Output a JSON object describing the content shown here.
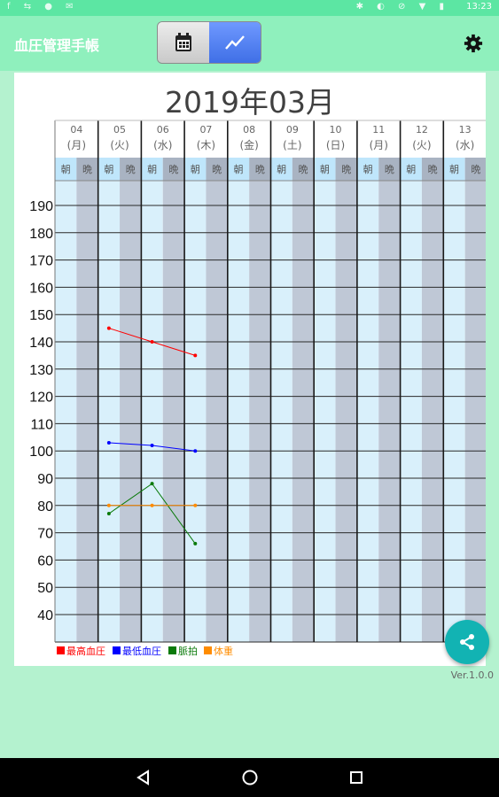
{
  "status": {
    "time": "13:23",
    "left_icons": "f ⇆ ● ✉",
    "right_icons": "✱ ◐ ⊘ ▼ ▮"
  },
  "app": {
    "title": "血圧管理手帳"
  },
  "toolbar": {
    "calendar_icon": "calendar-icon",
    "chart_icon": "line-chart-icon",
    "settings_icon": "gear-icon"
  },
  "month_title": "2019年03月",
  "version": "Ver.1.0.0",
  "colors": {
    "systolic": "#ff0000",
    "diastolic": "#0000ff",
    "pulse": "#0a7a0a",
    "weight": "#ff8c00"
  },
  "chart_data": {
    "type": "line",
    "title": "2019年03月",
    "days": [
      {
        "d": "04",
        "w": "(月)"
      },
      {
        "d": "05",
        "w": "(火)"
      },
      {
        "d": "06",
        "w": "(水)"
      },
      {
        "d": "07",
        "w": "(木)"
      },
      {
        "d": "08",
        "w": "(金)"
      },
      {
        "d": "09",
        "w": "(土)"
      },
      {
        "d": "10",
        "w": "(日)"
      },
      {
        "d": "11",
        "w": "(月)"
      },
      {
        "d": "12",
        "w": "(火)"
      },
      {
        "d": "13",
        "w": "(水)"
      }
    ],
    "slots": [
      "朝",
      "晩"
    ],
    "y_ticks": [
      40,
      50,
      60,
      70,
      80,
      90,
      100,
      110,
      120,
      130,
      140,
      150,
      160,
      170,
      180,
      190
    ],
    "ylim": [
      30,
      195
    ],
    "series": [
      {
        "name": "最高血圧",
        "color": "#ff0000",
        "points": [
          [
            "05",
            "朝",
            145
          ],
          [
            "06",
            "朝",
            140
          ],
          [
            "07",
            "朝",
            135
          ]
        ]
      },
      {
        "name": "最低血圧",
        "color": "#0000ff",
        "points": [
          [
            "05",
            "朝",
            103
          ],
          [
            "06",
            "朝",
            102
          ],
          [
            "07",
            "朝",
            100
          ]
        ]
      },
      {
        "name": "脈拍",
        "color": "#0a7a0a",
        "points": [
          [
            "05",
            "朝",
            77
          ],
          [
            "06",
            "朝",
            88
          ],
          [
            "07",
            "朝",
            66
          ]
        ]
      },
      {
        "name": "体重",
        "color": "#ff8c00",
        "points": [
          [
            "05",
            "朝",
            80
          ],
          [
            "06",
            "朝",
            80
          ],
          [
            "07",
            "朝",
            80
          ]
        ]
      }
    ]
  }
}
